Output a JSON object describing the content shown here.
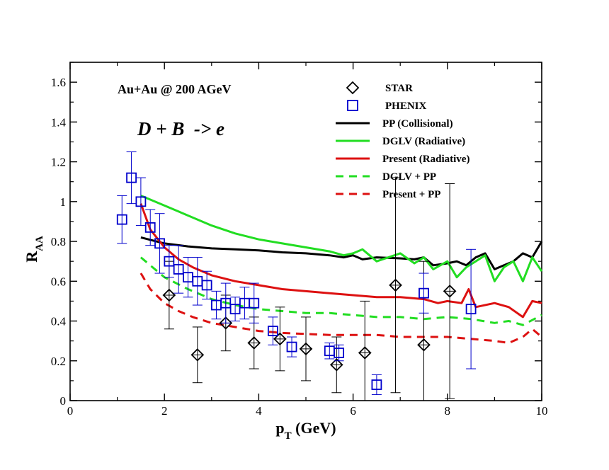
{
  "chart_data": {
    "type": "line",
    "xlabel": "p",
    "xlabel_sub": "T",
    "xlabel_unit": " (GeV)",
    "ylabel": "R",
    "ylabel_sub": "AA",
    "xlim": [
      0,
      10
    ],
    "ylim": [
      0,
      1.7
    ],
    "xticks": [
      0,
      2,
      4,
      6,
      8,
      10
    ],
    "yticks": [
      0,
      0.2,
      0.4,
      0.6,
      0.8,
      1,
      1.2,
      1.4,
      1.6
    ],
    "xtick_labels": [
      "0",
      "2",
      "4",
      "6",
      "8",
      "10"
    ],
    "ytick_labels": [
      "0",
      "0.2",
      "0.4",
      "0.6",
      "0.8",
      "1",
      "1.2",
      "1.4",
      "1.6"
    ],
    "annotations": {
      "system": "Au+Au @ 200 AGeV",
      "process": "D + B  -> e"
    },
    "legend": [
      {
        "label": "STAR",
        "kind": "diamond",
        "color": "#000000"
      },
      {
        "label": "PHENIX",
        "kind": "square",
        "color": "#0000cc"
      },
      {
        "label": "PP (Collisional)",
        "kind": "solid",
        "color": "#000000"
      },
      {
        "label": "DGLV (Radiative)",
        "kind": "solid",
        "color": "#22dd22"
      },
      {
        "label": "Present (Radiative)",
        "kind": "solid",
        "color": "#dd1111"
      },
      {
        "label": "DGLV + PP",
        "kind": "dashed",
        "color": "#22dd22"
      },
      {
        "label": "Present + PP",
        "kind": "dashed",
        "color": "#dd1111"
      }
    ],
    "series": [
      {
        "name": "PP (Collisional)",
        "style": "solid",
        "color": "#000000",
        "x": [
          1.5,
          2.0,
          2.5,
          3.0,
          3.5,
          4.0,
          4.5,
          5.0,
          5.5,
          5.8,
          6.0,
          6.2,
          6.5,
          7.0,
          7.3,
          7.5,
          7.7,
          8.0,
          8.2,
          8.4,
          8.6,
          8.8,
          9.0,
          9.2,
          9.4,
          9.6,
          9.8,
          10.0
        ],
        "y": [
          0.82,
          0.79,
          0.775,
          0.765,
          0.76,
          0.755,
          0.745,
          0.74,
          0.73,
          0.72,
          0.73,
          0.71,
          0.72,
          0.715,
          0.71,
          0.72,
          0.68,
          0.69,
          0.7,
          0.68,
          0.72,
          0.74,
          0.66,
          0.68,
          0.7,
          0.74,
          0.72,
          0.8
        ]
      },
      {
        "name": "DGLV (Radiative)",
        "style": "solid",
        "color": "#22dd22",
        "x": [
          1.5,
          2.0,
          2.5,
          3.0,
          3.5,
          4.0,
          4.5,
          5.0,
          5.5,
          5.8,
          6.0,
          6.2,
          6.5,
          7.0,
          7.3,
          7.5,
          7.7,
          8.0,
          8.2,
          8.4,
          8.6,
          8.8,
          9.0,
          9.2,
          9.4,
          9.6,
          9.8,
          10.0
        ],
        "y": [
          1.03,
          0.98,
          0.93,
          0.88,
          0.84,
          0.81,
          0.79,
          0.77,
          0.75,
          0.73,
          0.74,
          0.76,
          0.7,
          0.74,
          0.69,
          0.72,
          0.66,
          0.7,
          0.62,
          0.67,
          0.7,
          0.73,
          0.6,
          0.67,
          0.7,
          0.6,
          0.72,
          0.65
        ]
      },
      {
        "name": "Present (Radiative)",
        "style": "solid",
        "color": "#dd1111",
        "x": [
          1.5,
          1.7,
          2.0,
          2.3,
          2.6,
          3.0,
          3.5,
          4.0,
          4.5,
          5.0,
          5.5,
          6.0,
          6.5,
          7.0,
          7.5,
          7.8,
          8.0,
          8.3,
          8.45,
          8.6,
          9.0,
          9.3,
          9.6,
          9.8,
          10.0
        ],
        "y": [
          0.99,
          0.86,
          0.77,
          0.71,
          0.67,
          0.63,
          0.6,
          0.58,
          0.56,
          0.55,
          0.54,
          0.53,
          0.52,
          0.52,
          0.51,
          0.49,
          0.5,
          0.49,
          0.56,
          0.47,
          0.49,
          0.47,
          0.42,
          0.5,
          0.49
        ]
      },
      {
        "name": "DGLV + PP",
        "style": "dashed",
        "color": "#22dd22",
        "x": [
          1.5,
          2.0,
          2.5,
          3.0,
          3.5,
          4.0,
          4.5,
          5.0,
          5.5,
          6.0,
          6.5,
          7.0,
          7.5,
          8.0,
          8.5,
          9.0,
          9.3,
          9.6,
          10.0
        ],
        "y": [
          0.72,
          0.62,
          0.56,
          0.51,
          0.48,
          0.46,
          0.45,
          0.44,
          0.44,
          0.43,
          0.42,
          0.42,
          0.41,
          0.42,
          0.41,
          0.39,
          0.4,
          0.38,
          0.43
        ]
      },
      {
        "name": "Present + PP",
        "style": "dashed",
        "color": "#dd1111",
        "x": [
          1.5,
          1.7,
          2.0,
          2.3,
          2.6,
          3.0,
          3.5,
          4.0,
          4.5,
          5.0,
          5.5,
          6.0,
          6.5,
          7.0,
          7.5,
          8.0,
          8.5,
          9.0,
          9.3,
          9.6,
          9.8,
          10.0
        ],
        "y": [
          0.64,
          0.56,
          0.49,
          0.45,
          0.42,
          0.39,
          0.37,
          0.35,
          0.34,
          0.335,
          0.33,
          0.33,
          0.33,
          0.32,
          0.32,
          0.32,
          0.31,
          0.3,
          0.29,
          0.32,
          0.36,
          0.32
        ]
      }
    ],
    "points": [
      {
        "name": "STAR",
        "marker": "diamond",
        "color": "#000000",
        "x": [
          2.1,
          2.7,
          3.3,
          3.9,
          4.45,
          5.0,
          5.65,
          6.25,
          6.9,
          7.5,
          8.05
        ],
        "y": [
          0.53,
          0.23,
          0.39,
          0.29,
          0.31,
          0.26,
          0.18,
          0.24,
          0.58,
          0.28,
          0.55
        ],
        "err": [
          0.17,
          0.14,
          0.14,
          0.13,
          0.16,
          0.16,
          0.14,
          0.26,
          0.54,
          0.42,
          0.54
        ]
      },
      {
        "name": "PHENIX",
        "marker": "square",
        "color": "#0000cc",
        "x": [
          1.1,
          1.3,
          1.5,
          1.7,
          1.9,
          2.1,
          2.3,
          2.5,
          2.7,
          2.9,
          3.1,
          3.3,
          3.5,
          3.7,
          3.9,
          4.3,
          4.7,
          5.5,
          5.7,
          6.5,
          7.5,
          8.5
        ],
        "y": [
          0.91,
          1.12,
          1.0,
          0.87,
          0.79,
          0.7,
          0.66,
          0.62,
          0.6,
          0.58,
          0.48,
          0.49,
          0.46,
          0.49,
          0.49,
          0.35,
          0.27,
          0.25,
          0.24,
          0.08,
          0.54,
          0.46
        ],
        "err": [
          0.12,
          0.13,
          0.12,
          0.09,
          0.15,
          0.08,
          0.12,
          0.1,
          0.12,
          0.07,
          0.07,
          0.1,
          0.06,
          0.08,
          0.1,
          0.07,
          0.05,
          0.04,
          0.04,
          0.05,
          0.1,
          0.3
        ]
      }
    ]
  }
}
